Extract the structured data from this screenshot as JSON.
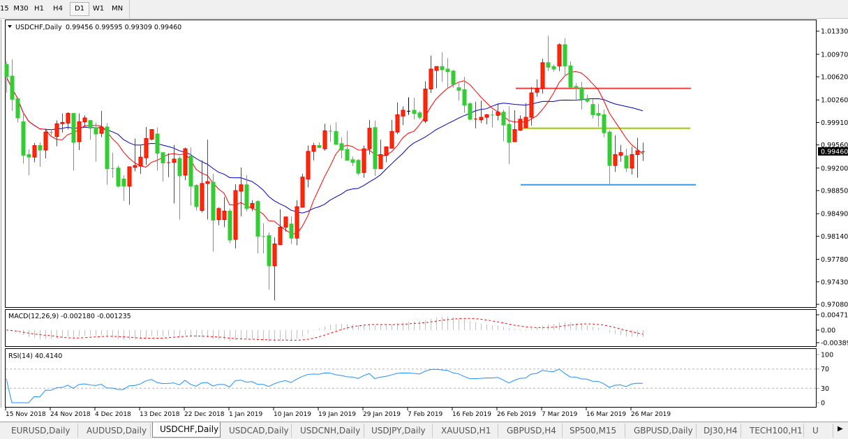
{
  "toolbar": {
    "timeframes": [
      "15",
      "M30",
      "H1",
      "H4",
      "D1",
      "W1",
      "MN"
    ],
    "active": "D1"
  },
  "chart_header": {
    "symbol": "USDCHF,Daily",
    "ohlc": "0.99456 0.99595 0.99309 0.99460"
  },
  "macd_header": "MACD(12,26,9) -0.002180 -0.001235",
  "rsi_header": "RSI(14) 40.4140",
  "price_axis_labels": [
    "1.01330",
    "1.00970",
    "1.00620",
    "1.00260",
    "0.99910",
    "0.99560",
    "0.99200",
    "0.98850",
    "0.98490",
    "0.98140",
    "0.97780",
    "0.97430",
    "0.97080"
  ],
  "current_price_label": "0.99460",
  "macd_axis_labels": [
    "0.004718",
    "0.00",
    "-0.003893"
  ],
  "rsi_axis_labels": [
    "100",
    "70",
    "30",
    "0"
  ],
  "date_labels": [
    "15 Nov 2018",
    "24 Nov 2018",
    "4 Dec 2018",
    "13 Dec 2018",
    "22 Dec 2018",
    "1 Jan 2019",
    "10 Jan 2019",
    "19 Jan 2019",
    "29 Jan 2019",
    "7 Feb 2019",
    "16 Feb 2019",
    "26 Feb 2019",
    "7 Mar 2019",
    "16 Mar 2019",
    "26 Mar 2019"
  ],
  "tabs": [
    "EURUSD,Daily",
    "AUDUSD,Daily",
    "USDCHF,Daily",
    "USDCAD,Daily",
    "USDCNH,Daily",
    "USDJPY,Daily",
    "XAUUSD,H1",
    "GBPUSD,H4",
    "SP500,M15",
    "GBPUSD,Daily",
    "DJ30,H4",
    "TECH100,H1",
    "U"
  ],
  "active_tab": "USDCHF,Daily",
  "colors": {
    "bull_candle": "#ff2a00",
    "bear_candle": "#32cd32",
    "fast_ma": "#ff0000",
    "slow_ma": "#0000c8",
    "macd_histogram": "#c0c0c0",
    "macd_signal": "#ff0000",
    "rsi_line": "#1e90ff",
    "resistance_line": "#f03c3c",
    "middle_line": "#9acd00",
    "support_line": "#3c96e6"
  },
  "chart_data": {
    "type": "candlestick",
    "price_range": [
      0.97037,
      1.015
    ],
    "macd_range": [
      -0.003893,
      0.004718
    ],
    "rsi_range": [
      0,
      100
    ],
    "rsi_levels": [
      30,
      70
    ],
    "horizontal_lines": [
      {
        "price": 1.0044,
        "color": "#f03c3c"
      },
      {
        "price": 0.9982,
        "color": "#9acd00"
      },
      {
        "price": 0.9894,
        "color": "#3c96e6"
      }
    ],
    "ohlc": [
      [
        1.0081,
        1.0086,
        1.0037,
        1.0062
      ],
      [
        1.0063,
        1.0089,
        1.0009,
        1.0027
      ],
      [
        1.0028,
        1.003,
        0.9991,
        0.9998
      ],
      [
        0.9992,
        1.0008,
        0.9927,
        0.994
      ],
      [
        0.9941,
        0.9949,
        0.9909,
        0.9937
      ],
      [
        0.9937,
        0.9959,
        0.9929,
        0.9955
      ],
      [
        0.9955,
        0.996,
        0.9922,
        0.9948
      ],
      [
        0.9948,
        0.9981,
        0.9935,
        0.9976
      ],
      [
        0.9976,
        0.998,
        0.9971,
        0.9975
      ],
      [
        0.9969,
        0.9994,
        0.9954,
        0.9989
      ],
      [
        0.9989,
        1.0005,
        0.9975,
        0.9991
      ],
      [
        0.999,
        1.0007,
        0.998,
        1.0005
      ],
      [
        1.0005,
        1.0006,
        0.9916,
        0.996
      ],
      [
        0.9961,
        1.0005,
        0.9948,
        0.9992
      ],
      [
        0.9992,
        1.0002,
        0.9983,
        0.9998
      ],
      [
        0.9994,
        0.9994,
        0.9964,
        0.9982
      ],
      [
        0.9983,
        0.9991,
        0.993,
        0.9973
      ],
      [
        0.9974,
        1.0009,
        0.9968,
        0.9984
      ],
      [
        0.9984,
        0.999,
        0.9894,
        0.9919
      ],
      [
        0.992,
        0.9944,
        0.9905,
        0.9919
      ],
      [
        0.992,
        0.9924,
        0.989,
        0.9892
      ],
      [
        0.9903,
        0.9909,
        0.9869,
        0.9892
      ],
      [
        0.9892,
        0.9922,
        0.9863,
        0.9922
      ],
      [
        0.9921,
        0.9966,
        0.9915,
        0.9924
      ],
      [
        0.9923,
        0.9955,
        0.9911,
        0.9937
      ],
      [
        0.9936,
        0.9984,
        0.9925,
        0.9966
      ],
      [
        0.9965,
        0.998,
        0.9963,
        0.998
      ],
      [
        0.9973,
        0.9983,
        0.9916,
        0.9943
      ],
      [
        0.9944,
        0.9944,
        0.9899,
        0.9928
      ],
      [
        0.9928,
        0.9943,
        0.9906,
        0.9929
      ],
      [
        0.9929,
        0.9956,
        0.9865,
        0.9934
      ],
      [
        0.9935,
        0.9938,
        0.984,
        0.9908
      ],
      [
        0.9909,
        0.9952,
        0.9901,
        0.995
      ],
      [
        0.9939,
        0.9952,
        0.9862,
        0.9892
      ],
      [
        0.9893,
        0.9895,
        0.9854,
        0.986
      ],
      [
        0.9854,
        0.9932,
        0.9851,
        0.9896
      ],
      [
        0.9896,
        0.9964,
        0.984,
        0.9899
      ],
      [
        0.9898,
        0.9911,
        0.979,
        0.9839
      ],
      [
        0.984,
        0.9859,
        0.9831,
        0.9857
      ],
      [
        0.984,
        0.9875,
        0.9828,
        0.9853
      ],
      [
        0.9853,
        0.9857,
        0.9803,
        0.9808
      ],
      [
        0.9809,
        0.9895,
        0.9795,
        0.9885
      ],
      [
        0.9884,
        0.9921,
        0.9845,
        0.9894
      ],
      [
        0.9894,
        0.9909,
        0.9853,
        0.9857
      ],
      [
        0.9858,
        0.987,
        0.9853,
        0.9865
      ],
      [
        0.9868,
        0.987,
        0.9787,
        0.9814
      ],
      [
        0.9814,
        0.9834,
        0.9787,
        0.9813
      ],
      [
        0.9815,
        0.982,
        0.9731,
        0.9768
      ],
      [
        0.9768,
        0.9812,
        0.9714,
        0.9802
      ],
      [
        0.9801,
        0.9856,
        0.98,
        0.9828
      ],
      [
        0.9828,
        0.9844,
        0.9821,
        0.9844
      ],
      [
        0.9833,
        0.9845,
        0.9802,
        0.9811
      ],
      [
        0.9811,
        0.987,
        0.98,
        0.986
      ],
      [
        0.9859,
        0.9911,
        0.9859,
        0.9906
      ],
      [
        0.9903,
        0.9955,
        0.989,
        0.9946
      ],
      [
        0.9946,
        0.9959,
        0.9932,
        0.9955
      ],
      [
        0.9955,
        0.996,
        0.9951,
        0.9952
      ],
      [
        0.995,
        0.9989,
        0.9947,
        0.9978
      ],
      [
        0.9978,
        0.9987,
        0.9961,
        0.9977
      ],
      [
        0.9977,
        0.9991,
        0.9956,
        0.9957
      ],
      [
        0.9958,
        0.9968,
        0.9935,
        0.9948
      ],
      [
        0.9949,
        0.9978,
        0.9932,
        0.9932
      ],
      [
        0.9933,
        0.9938,
        0.9923,
        0.9929
      ],
      [
        0.9932,
        0.9934,
        0.9909,
        0.9912
      ],
      [
        0.9913,
        0.9955,
        0.9905,
        0.995
      ],
      [
        0.995,
        0.9995,
        0.9941,
        0.9982
      ],
      [
        0.9983,
        0.9994,
        0.9908,
        0.9919
      ],
      [
        0.9919,
        0.9964,
        0.9919,
        0.9941
      ],
      [
        0.994,
        0.9953,
        0.9929,
        0.9953
      ],
      [
        0.9951,
        0.9995,
        0.9951,
        0.9977
      ],
      [
        0.9976,
        1.0022,
        0.9973,
        1.0003
      ],
      [
        1.0001,
        1.0016,
        0.9987,
        1.001
      ],
      [
        1.0009,
        1.003,
        1.0003,
        1.0009
      ],
      [
        1.001,
        1.0029,
        0.9996,
        1.0005
      ],
      [
        1.0006,
        1.0009,
        0.9996,
        0.9999
      ],
      [
        0.9993,
        1.0055,
        0.999,
        1.0043
      ],
      [
        1.0043,
        1.0095,
        1.0037,
        1.0074
      ],
      [
        1.0072,
        1.0078,
        1.0044,
        1.0078
      ],
      [
        1.0078,
        1.01,
        1.0054,
        1.0073
      ],
      [
        1.0074,
        1.0091,
        1.0045,
        1.007
      ],
      [
        1.0071,
        1.0073,
        1.0045,
        1.005
      ],
      [
        1.0045,
        1.0052,
        1.0025,
        1.0041
      ],
      [
        1.0042,
        1.0062,
        1.0006,
        1.0018
      ],
      [
        1.002,
        1.0022,
        0.9994,
        0.9996
      ],
      [
        0.9996,
        1.0023,
        0.9982,
        0.9997
      ],
      [
        0.9995,
        1.0025,
        0.999,
        0.9999
      ],
      [
        0.9999,
        1.0004,
        0.9988,
        1.0003
      ],
      [
        1.0003,
        1.001,
        0.9983,
        1.0002
      ],
      [
        1.0002,
        1.0021,
        0.9994,
        1.0007
      ],
      [
        1.0007,
        1.0011,
        0.9962,
        0.9987
      ],
      [
        0.9988,
        1.0016,
        0.9926,
        0.996
      ],
      [
        0.9961,
        1.001,
        0.9961,
        0.998
      ],
      [
        0.9979,
        1.0002,
        0.9978,
        0.9996
      ],
      [
        0.9983,
        1.0021,
        0.9983,
        0.9999
      ],
      [
        0.9999,
        1.0046,
        0.9986,
        1.0037
      ],
      [
        1.0038,
        1.0058,
        1.0031,
        1.0044
      ],
      [
        1.0044,
        1.009,
        1.0036,
        1.0084
      ],
      [
        1.0084,
        1.0126,
        1.0071,
        1.0077
      ],
      [
        1.0078,
        1.0081,
        1.007,
        1.0074
      ],
      [
        1.0079,
        1.0114,
        1.0071,
        1.0112
      ],
      [
        1.0112,
        1.0122,
        1.0063,
        1.0079
      ],
      [
        1.0079,
        1.0086,
        1.0045,
        1.0046
      ],
      [
        1.0047,
        1.0052,
        1.0027,
        1.0045
      ],
      [
        1.0045,
        1.0054,
        1.0011,
        1.0027
      ],
      [
        1.0027,
        1.0034,
        1.0022,
        1.0024
      ],
      [
        1.0019,
        1.0027,
        0.9997,
        1.0003
      ],
      [
        1.0005,
        1.002,
        0.9984,
        1.0002
      ],
      [
        1.0003,
        1.0011,
        0.9968,
        0.9975
      ],
      [
        0.9976,
        0.9979,
        0.9894,
        0.9924
      ],
      [
        0.9924,
        0.9971,
        0.9914,
        0.9941
      ],
      [
        0.994,
        0.9956,
        0.993,
        0.9944
      ],
      [
        0.9939,
        0.995,
        0.9914,
        0.992
      ],
      [
        0.992,
        0.9953,
        0.991,
        0.9941
      ],
      [
        0.9941,
        0.9967,
        0.9905,
        0.9947
      ],
      [
        0.99456,
        0.99595,
        0.99309,
        0.9946
      ]
    ]
  }
}
